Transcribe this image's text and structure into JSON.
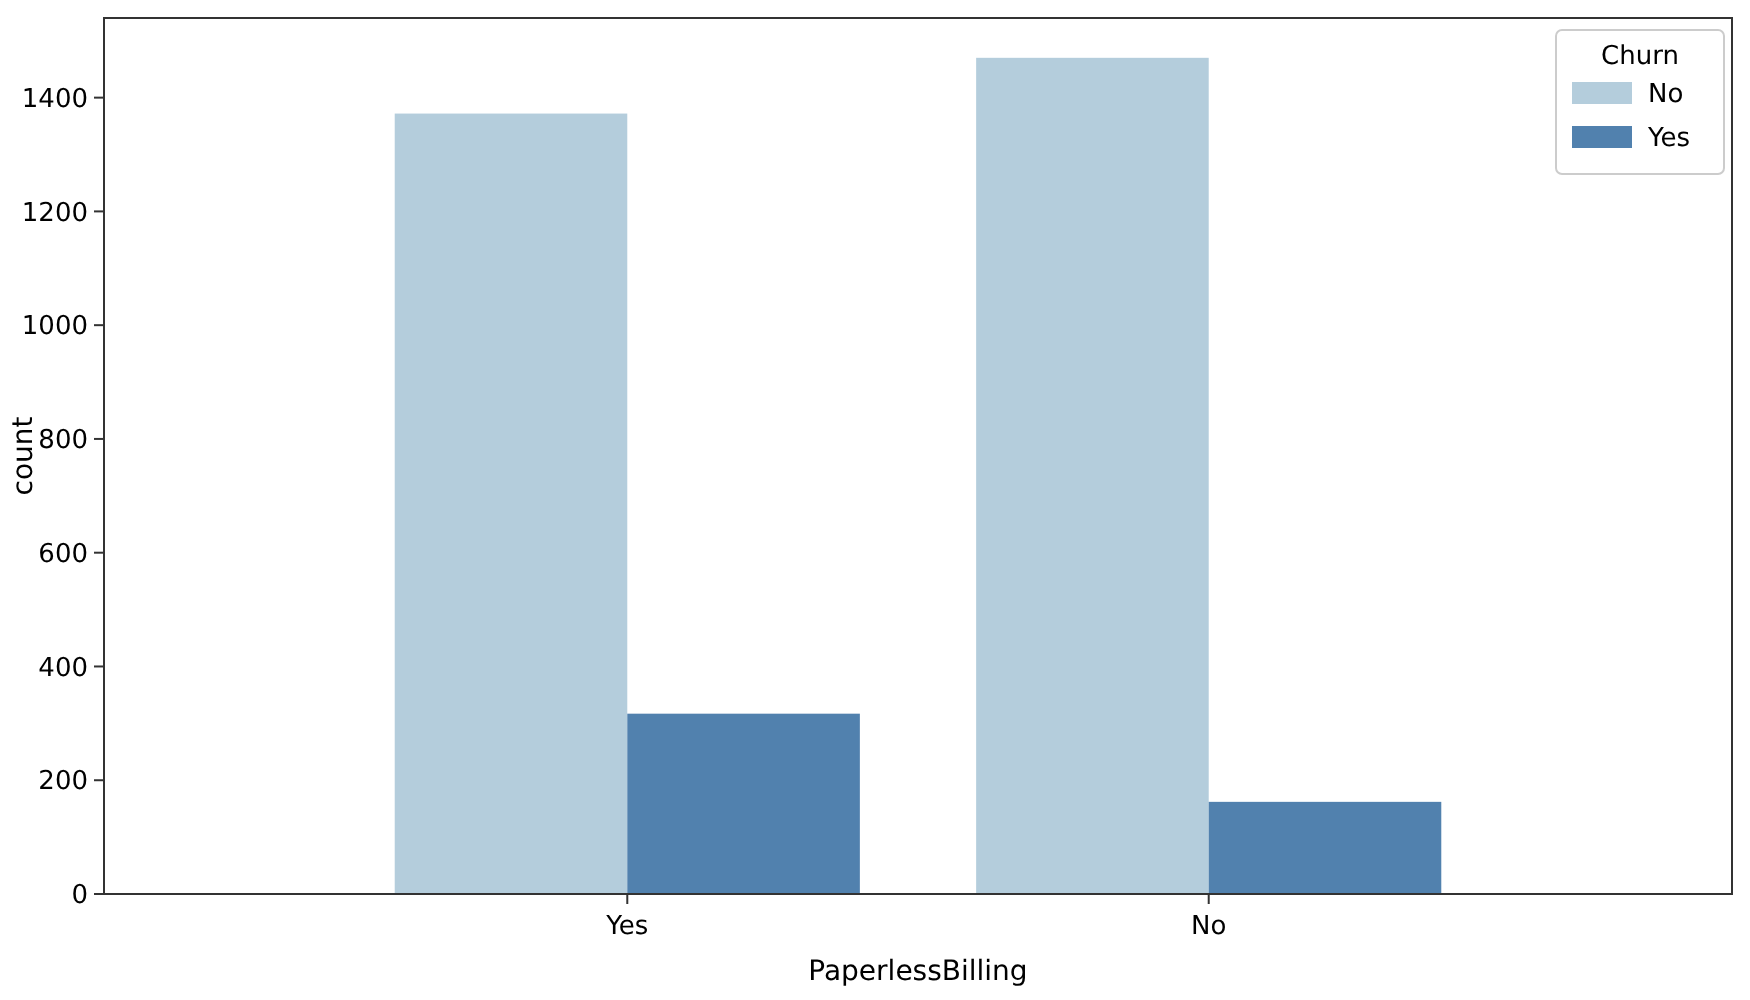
{
  "chart_data": {
    "type": "bar",
    "categories": [
      "Yes",
      "No"
    ],
    "xlabel": "PaperlessBilling",
    "ylabel": "count",
    "legend_title": "Churn",
    "legend": "top right",
    "grid": false,
    "series": [
      {
        "name": "No",
        "color": "#b4cddc",
        "values": [
          1372,
          1470
        ]
      },
      {
        "name": "Yes",
        "color": "#5181ae",
        "values": [
          317,
          162
        ]
      }
    ],
    "ylim": [
      0,
      1540
    ],
    "yticks": [
      0,
      200,
      400,
      600,
      800,
      1000,
      1200,
      1400
    ]
  }
}
